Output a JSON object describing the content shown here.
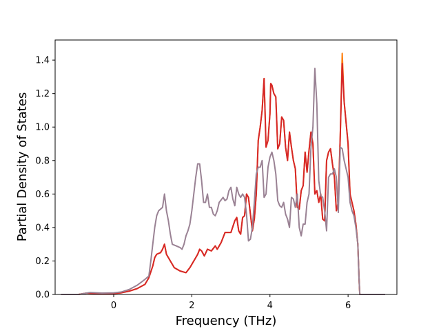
{
  "chart_data": {
    "type": "line",
    "title": "",
    "xlabel": "Frequency (THz)",
    "ylabel": "Partial Density of States",
    "xlim": [
      -1.5,
      7.25
    ],
    "ylim": [
      0.0,
      1.52
    ],
    "xticks": [
      0,
      2,
      4,
      6
    ],
    "xtick_labels": [
      "0",
      "2",
      "4",
      "6"
    ],
    "yticks": [
      0.0,
      0.2,
      0.4,
      0.6,
      0.8,
      1.0,
      1.2,
      1.4
    ],
    "ytick_labels": [
      "0.0",
      "0.2",
      "0.4",
      "0.6",
      "0.8",
      "1.0",
      "1.2",
      "1.4"
    ],
    "grid": false,
    "legend": "none",
    "series": [
      {
        "color": "#ff7f0e",
        "points": [
          [
            -1.35,
            0
          ],
          [
            -0.9,
            0
          ],
          [
            -0.7,
            0.008
          ],
          [
            -0.5,
            0.006
          ],
          [
            -0.3,
            0.003
          ],
          [
            0,
            0.006
          ],
          [
            0.2,
            0.01
          ],
          [
            0.4,
            0.02
          ],
          [
            0.6,
            0.035
          ],
          [
            0.8,
            0.06
          ],
          [
            0.9,
            0.1
          ],
          [
            1.0,
            0.17
          ],
          [
            1.05,
            0.22
          ],
          [
            1.1,
            0.24
          ],
          [
            1.2,
            0.25
          ],
          [
            1.25,
            0.27
          ],
          [
            1.3,
            0.3
          ],
          [
            1.35,
            0.24
          ],
          [
            1.45,
            0.2
          ],
          [
            1.55,
            0.16
          ],
          [
            1.7,
            0.14
          ],
          [
            1.85,
            0.13
          ],
          [
            1.95,
            0.16
          ],
          [
            2.05,
            0.2
          ],
          [
            2.15,
            0.24
          ],
          [
            2.2,
            0.27
          ],
          [
            2.25,
            0.26
          ],
          [
            2.32,
            0.23
          ],
          [
            2.4,
            0.27
          ],
          [
            2.5,
            0.26
          ],
          [
            2.6,
            0.29
          ],
          [
            2.65,
            0.27
          ],
          [
            2.75,
            0.31
          ],
          [
            2.85,
            0.37
          ],
          [
            3.0,
            0.37
          ],
          [
            3.1,
            0.44
          ],
          [
            3.15,
            0.46
          ],
          [
            3.2,
            0.38
          ],
          [
            3.25,
            0.36
          ],
          [
            3.3,
            0.46
          ],
          [
            3.35,
            0.47
          ],
          [
            3.4,
            0.6
          ],
          [
            3.45,
            0.58
          ],
          [
            3.5,
            0.48
          ],
          [
            3.55,
            0.38
          ],
          [
            3.6,
            0.45
          ],
          [
            3.65,
            0.6
          ],
          [
            3.7,
            0.92
          ],
          [
            3.75,
            1.0
          ],
          [
            3.8,
            1.1
          ],
          [
            3.85,
            1.29
          ],
          [
            3.9,
            0.88
          ],
          [
            3.95,
            0.92
          ],
          [
            4.0,
            1.08
          ],
          [
            4.02,
            1.26
          ],
          [
            4.05,
            1.25
          ],
          [
            4.1,
            1.2
          ],
          [
            4.15,
            1.18
          ],
          [
            4.2,
            0.87
          ],
          [
            4.25,
            0.9
          ],
          [
            4.3,
            1.06
          ],
          [
            4.35,
            1.04
          ],
          [
            4.4,
            0.88
          ],
          [
            4.45,
            0.8
          ],
          [
            4.5,
            0.97
          ],
          [
            4.55,
            0.88
          ],
          [
            4.6,
            0.8
          ],
          [
            4.65,
            0.75
          ],
          [
            4.7,
            0.52
          ],
          [
            4.75,
            0.51
          ],
          [
            4.8,
            0.62
          ],
          [
            4.85,
            0.65
          ],
          [
            4.9,
            0.85
          ],
          [
            4.95,
            0.73
          ],
          [
            5.0,
            0.86
          ],
          [
            5.05,
            0.97
          ],
          [
            5.1,
            0.9
          ],
          [
            5.15,
            0.6
          ],
          [
            5.2,
            0.62
          ],
          [
            5.25,
            0.55
          ],
          [
            5.3,
            0.6
          ],
          [
            5.35,
            0.45
          ],
          [
            5.4,
            0.44
          ],
          [
            5.45,
            0.8
          ],
          [
            5.5,
            0.85
          ],
          [
            5.55,
            0.87
          ],
          [
            5.6,
            0.78
          ],
          [
            5.65,
            0.7
          ],
          [
            5.7,
            0.5
          ],
          [
            5.75,
            0.55
          ],
          [
            5.8,
            0.95
          ],
          [
            5.85,
            1.44
          ],
          [
            5.9,
            1.15
          ],
          [
            6.0,
            0.9
          ],
          [
            6.05,
            0.6
          ],
          [
            6.1,
            0.55
          ],
          [
            6.15,
            0.5
          ],
          [
            6.2,
            0.42
          ],
          [
            6.25,
            0.3
          ],
          [
            6.28,
            0.1
          ],
          [
            6.3,
            0
          ],
          [
            6.95,
            0
          ]
        ]
      },
      {
        "color": "#d62728",
        "points": [
          [
            -1.35,
            0
          ],
          [
            -0.9,
            0
          ],
          [
            -0.7,
            0.008
          ],
          [
            -0.5,
            0.006
          ],
          [
            -0.3,
            0.003
          ],
          [
            0,
            0.006
          ],
          [
            0.2,
            0.01
          ],
          [
            0.4,
            0.02
          ],
          [
            0.6,
            0.035
          ],
          [
            0.8,
            0.06
          ],
          [
            0.9,
            0.1
          ],
          [
            1.0,
            0.17
          ],
          [
            1.05,
            0.22
          ],
          [
            1.1,
            0.24
          ],
          [
            1.2,
            0.25
          ],
          [
            1.25,
            0.27
          ],
          [
            1.3,
            0.3
          ],
          [
            1.35,
            0.24
          ],
          [
            1.45,
            0.2
          ],
          [
            1.55,
            0.16
          ],
          [
            1.7,
            0.14
          ],
          [
            1.85,
            0.13
          ],
          [
            1.95,
            0.16
          ],
          [
            2.05,
            0.2
          ],
          [
            2.15,
            0.24
          ],
          [
            2.2,
            0.27
          ],
          [
            2.25,
            0.26
          ],
          [
            2.32,
            0.23
          ],
          [
            2.4,
            0.27
          ],
          [
            2.5,
            0.26
          ],
          [
            2.6,
            0.29
          ],
          [
            2.65,
            0.27
          ],
          [
            2.75,
            0.31
          ],
          [
            2.85,
            0.37
          ],
          [
            3.0,
            0.37
          ],
          [
            3.1,
            0.44
          ],
          [
            3.15,
            0.46
          ],
          [
            3.2,
            0.38
          ],
          [
            3.25,
            0.36
          ],
          [
            3.3,
            0.46
          ],
          [
            3.35,
            0.47
          ],
          [
            3.4,
            0.6
          ],
          [
            3.45,
            0.58
          ],
          [
            3.5,
            0.48
          ],
          [
            3.55,
            0.38
          ],
          [
            3.6,
            0.45
          ],
          [
            3.65,
            0.6
          ],
          [
            3.7,
            0.92
          ],
          [
            3.75,
            1.0
          ],
          [
            3.8,
            1.1
          ],
          [
            3.85,
            1.29
          ],
          [
            3.9,
            0.88
          ],
          [
            3.95,
            0.92
          ],
          [
            4.0,
            1.08
          ],
          [
            4.02,
            1.26
          ],
          [
            4.05,
            1.25
          ],
          [
            4.1,
            1.2
          ],
          [
            4.15,
            1.18
          ],
          [
            4.2,
            0.87
          ],
          [
            4.25,
            0.9
          ],
          [
            4.3,
            1.06
          ],
          [
            4.35,
            1.04
          ],
          [
            4.4,
            0.88
          ],
          [
            4.45,
            0.8
          ],
          [
            4.5,
            0.97
          ],
          [
            4.55,
            0.88
          ],
          [
            4.6,
            0.8
          ],
          [
            4.65,
            0.75
          ],
          [
            4.7,
            0.52
          ],
          [
            4.75,
            0.51
          ],
          [
            4.8,
            0.62
          ],
          [
            4.85,
            0.65
          ],
          [
            4.9,
            0.85
          ],
          [
            4.95,
            0.73
          ],
          [
            5.0,
            0.86
          ],
          [
            5.05,
            0.97
          ],
          [
            5.1,
            0.9
          ],
          [
            5.15,
            0.6
          ],
          [
            5.2,
            0.62
          ],
          [
            5.25,
            0.55
          ],
          [
            5.3,
            0.6
          ],
          [
            5.35,
            0.45
          ],
          [
            5.4,
            0.44
          ],
          [
            5.45,
            0.8
          ],
          [
            5.5,
            0.85
          ],
          [
            5.55,
            0.87
          ],
          [
            5.6,
            0.78
          ],
          [
            5.65,
            0.7
          ],
          [
            5.7,
            0.5
          ],
          [
            5.75,
            0.55
          ],
          [
            5.8,
            0.95
          ],
          [
            5.85,
            1.38
          ],
          [
            5.9,
            1.15
          ],
          [
            6.0,
            0.9
          ],
          [
            6.05,
            0.6
          ],
          [
            6.1,
            0.55
          ],
          [
            6.15,
            0.5
          ],
          [
            6.2,
            0.42
          ],
          [
            6.25,
            0.3
          ],
          [
            6.28,
            0.1
          ],
          [
            6.3,
            0
          ],
          [
            6.95,
            0
          ]
        ]
      },
      {
        "color": "#9a8294",
        "points": [
          [
            -1.35,
            0
          ],
          [
            -0.9,
            0
          ],
          [
            -0.6,
            0.012
          ],
          [
            -0.3,
            0.008
          ],
          [
            0,
            0.01
          ],
          [
            0.2,
            0.015
          ],
          [
            0.4,
            0.03
          ],
          [
            0.6,
            0.055
          ],
          [
            0.8,
            0.09
          ],
          [
            0.9,
            0.11
          ],
          [
            0.95,
            0.2
          ],
          [
            1.0,
            0.3
          ],
          [
            1.05,
            0.4
          ],
          [
            1.1,
            0.47
          ],
          [
            1.15,
            0.5
          ],
          [
            1.2,
            0.51
          ],
          [
            1.25,
            0.52
          ],
          [
            1.3,
            0.6
          ],
          [
            1.35,
            0.5
          ],
          [
            1.4,
            0.44
          ],
          [
            1.45,
            0.36
          ],
          [
            1.5,
            0.3
          ],
          [
            1.6,
            0.29
          ],
          [
            1.7,
            0.28
          ],
          [
            1.75,
            0.27
          ],
          [
            1.8,
            0.3
          ],
          [
            1.85,
            0.35
          ],
          [
            1.9,
            0.38
          ],
          [
            1.95,
            0.42
          ],
          [
            2.0,
            0.5
          ],
          [
            2.05,
            0.6
          ],
          [
            2.1,
            0.7
          ],
          [
            2.15,
            0.78
          ],
          [
            2.2,
            0.78
          ],
          [
            2.25,
            0.68
          ],
          [
            2.3,
            0.55
          ],
          [
            2.35,
            0.55
          ],
          [
            2.4,
            0.6
          ],
          [
            2.45,
            0.52
          ],
          [
            2.5,
            0.52
          ],
          [
            2.55,
            0.48
          ],
          [
            2.6,
            0.47
          ],
          [
            2.65,
            0.5
          ],
          [
            2.7,
            0.55
          ],
          [
            2.8,
            0.58
          ],
          [
            2.85,
            0.56
          ],
          [
            2.9,
            0.57
          ],
          [
            2.95,
            0.62
          ],
          [
            3.0,
            0.64
          ],
          [
            3.05,
            0.57
          ],
          [
            3.1,
            0.53
          ],
          [
            3.15,
            0.64
          ],
          [
            3.2,
            0.6
          ],
          [
            3.25,
            0.58
          ],
          [
            3.3,
            0.6
          ],
          [
            3.35,
            0.58
          ],
          [
            3.4,
            0.48
          ],
          [
            3.45,
            0.32
          ],
          [
            3.5,
            0.33
          ],
          [
            3.55,
            0.4
          ],
          [
            3.6,
            0.55
          ],
          [
            3.65,
            0.72
          ],
          [
            3.7,
            0.76
          ],
          [
            3.75,
            0.76
          ],
          [
            3.8,
            0.8
          ],
          [
            3.85,
            0.58
          ],
          [
            3.9,
            0.6
          ],
          [
            3.95,
            0.76
          ],
          [
            4.0,
            0.82
          ],
          [
            4.05,
            0.85
          ],
          [
            4.1,
            0.8
          ],
          [
            4.15,
            0.72
          ],
          [
            4.2,
            0.56
          ],
          [
            4.25,
            0.53
          ],
          [
            4.3,
            0.52
          ],
          [
            4.35,
            0.55
          ],
          [
            4.4,
            0.48
          ],
          [
            4.45,
            0.45
          ],
          [
            4.5,
            0.4
          ],
          [
            4.55,
            0.58
          ],
          [
            4.6,
            0.57
          ],
          [
            4.65,
            0.52
          ],
          [
            4.7,
            0.6
          ],
          [
            4.75,
            0.4
          ],
          [
            4.8,
            0.35
          ],
          [
            4.85,
            0.42
          ],
          [
            4.9,
            0.42
          ],
          [
            4.95,
            0.55
          ],
          [
            5.0,
            0.6
          ],
          [
            5.05,
            0.88
          ],
          [
            5.1,
            1.0
          ],
          [
            5.15,
            1.35
          ],
          [
            5.2,
            1.14
          ],
          [
            5.25,
            0.68
          ],
          [
            5.3,
            0.59
          ],
          [
            5.35,
            0.58
          ],
          [
            5.4,
            0.5
          ],
          [
            5.45,
            0.38
          ],
          [
            5.5,
            0.7
          ],
          [
            5.55,
            0.72
          ],
          [
            5.6,
            0.72
          ],
          [
            5.65,
            0.75
          ],
          [
            5.7,
            0.7
          ],
          [
            5.75,
            0.49
          ],
          [
            5.8,
            0.88
          ],
          [
            5.85,
            0.87
          ],
          [
            5.9,
            0.8
          ],
          [
            5.95,
            0.75
          ],
          [
            6.0,
            0.7
          ],
          [
            6.05,
            0.55
          ],
          [
            6.1,
            0.5
          ],
          [
            6.15,
            0.47
          ],
          [
            6.2,
            0.4
          ],
          [
            6.25,
            0.3
          ],
          [
            6.28,
            0.1
          ],
          [
            6.3,
            0
          ],
          [
            6.95,
            0
          ]
        ]
      }
    ]
  }
}
